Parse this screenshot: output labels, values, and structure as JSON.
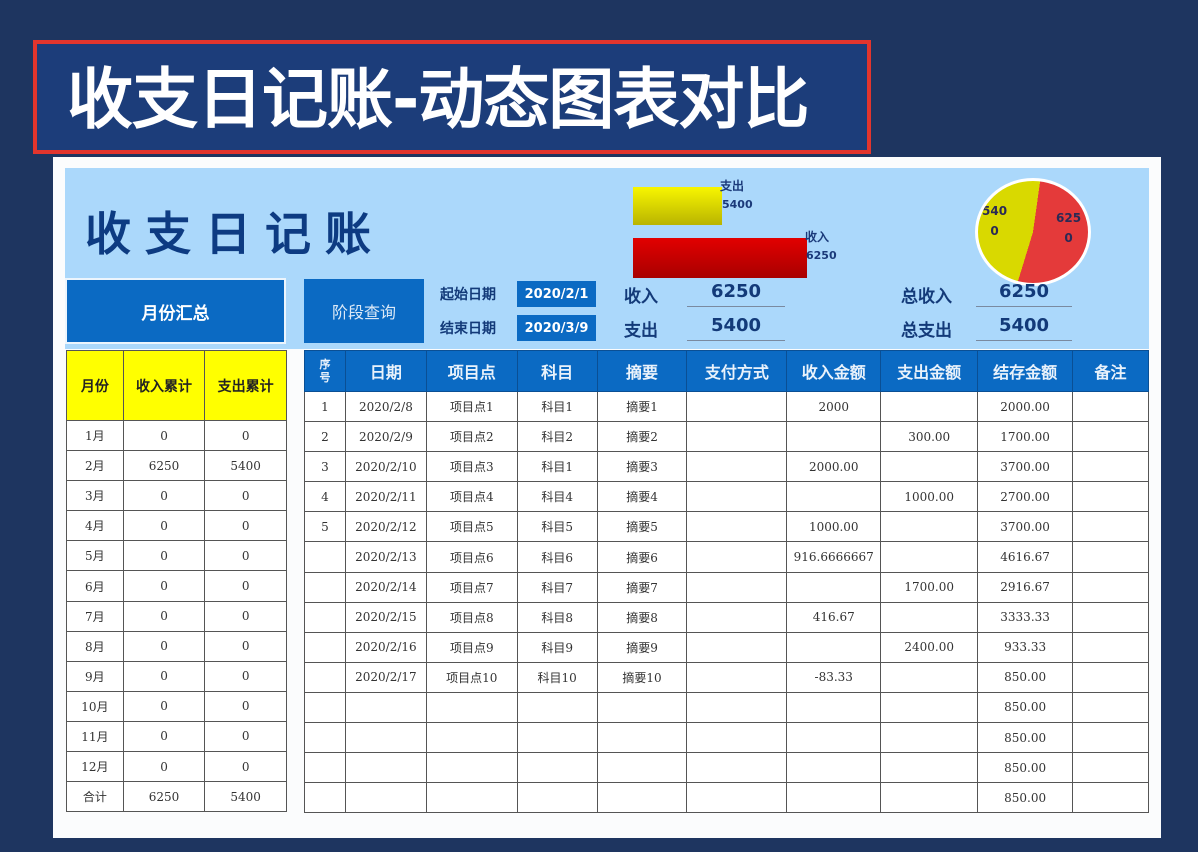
{
  "banner": {
    "title": "收支日记账-动态图表对比"
  },
  "header": {
    "title": "收支日记账"
  },
  "legend_chart": {
    "items": [
      {
        "label": "支出",
        "value": "5400",
        "color": "#e6e400"
      },
      {
        "label": "收入",
        "value": "6250",
        "color": "#d00000"
      }
    ]
  },
  "pie_chart": {
    "slices": [
      {
        "label_line1": "540",
        "label_line2": "0",
        "value": 5400,
        "color": "#d9d900"
      },
      {
        "label_line1": "625",
        "label_line2": "0",
        "value": 6250,
        "color": "#e43a3a"
      }
    ]
  },
  "controls": {
    "month_summary_button": "月份汇总",
    "period_query_button": "阶段查询",
    "start_date_label": "起始日期",
    "start_date_value": "2020/2/1",
    "end_date_label": "结束日期",
    "end_date_value": "2020/3/9"
  },
  "stats": {
    "income_label": "收入",
    "income_value": "6250",
    "expense_label": "支出",
    "expense_value": "5400",
    "total_income_label": "总收入",
    "total_income_value": "6250",
    "total_expense_label": "总支出",
    "total_expense_value": "5400"
  },
  "month_table": {
    "headers": [
      "月份",
      "收入累计",
      "支出累计"
    ],
    "rows": [
      [
        "1月",
        "0",
        "0"
      ],
      [
        "2月",
        "6250",
        "5400"
      ],
      [
        "3月",
        "0",
        "0"
      ],
      [
        "4月",
        "0",
        "0"
      ],
      [
        "5月",
        "0",
        "0"
      ],
      [
        "6月",
        "0",
        "0"
      ],
      [
        "7月",
        "0",
        "0"
      ],
      [
        "8月",
        "0",
        "0"
      ],
      [
        "9月",
        "0",
        "0"
      ],
      [
        "10月",
        "0",
        "0"
      ],
      [
        "11月",
        "0",
        "0"
      ],
      [
        "12月",
        "0",
        "0"
      ],
      [
        "合计",
        "6250",
        "5400"
      ]
    ]
  },
  "main_table": {
    "headers": [
      "序号",
      "日期",
      "项目点",
      "科目",
      "摘要",
      "支付方式",
      "收入金额",
      "支出金额",
      "结存金额",
      "备注"
    ],
    "rows": [
      [
        "1",
        "2020/2/8",
        "项目点1",
        "科目1",
        "摘要1",
        "",
        "2000",
        "",
        "2000.00",
        ""
      ],
      [
        "2",
        "2020/2/9",
        "项目点2",
        "科目2",
        "摘要2",
        "",
        "",
        "300.00",
        "1700.00",
        ""
      ],
      [
        "3",
        "2020/2/10",
        "项目点3",
        "科目1",
        "摘要3",
        "",
        "2000.00",
        "",
        "3700.00",
        ""
      ],
      [
        "4",
        "2020/2/11",
        "项目点4",
        "科目4",
        "摘要4",
        "",
        "",
        "1000.00",
        "2700.00",
        ""
      ],
      [
        "5",
        "2020/2/12",
        "项目点5",
        "科目5",
        "摘要5",
        "",
        "1000.00",
        "",
        "3700.00",
        ""
      ],
      [
        "",
        "2020/2/13",
        "项目点6",
        "科目6",
        "摘要6",
        "",
        "916.6666667",
        "",
        "4616.67",
        ""
      ],
      [
        "",
        "2020/2/14",
        "项目点7",
        "科目7",
        "摘要7",
        "",
        "",
        "1700.00",
        "2916.67",
        ""
      ],
      [
        "",
        "2020/2/15",
        "项目点8",
        "科目8",
        "摘要8",
        "",
        "416.67",
        "",
        "3333.33",
        ""
      ],
      [
        "",
        "2020/2/16",
        "项目点9",
        "科目9",
        "摘要9",
        "",
        "",
        "2400.00",
        "933.33",
        ""
      ],
      [
        "",
        "2020/2/17",
        "项目点10",
        "科目10",
        "摘要10",
        "",
        "-83.33",
        "",
        "850.00",
        ""
      ],
      [
        "",
        "",
        "",
        "",
        "",
        "",
        "",
        "",
        "850.00",
        ""
      ],
      [
        "",
        "",
        "",
        "",
        "",
        "",
        "",
        "",
        "850.00",
        ""
      ],
      [
        "",
        "",
        "",
        "",
        "",
        "",
        "",
        "",
        "850.00",
        ""
      ],
      [
        "",
        "",
        "",
        "",
        "",
        "",
        "",
        "",
        "850.00",
        ""
      ]
    ]
  }
}
